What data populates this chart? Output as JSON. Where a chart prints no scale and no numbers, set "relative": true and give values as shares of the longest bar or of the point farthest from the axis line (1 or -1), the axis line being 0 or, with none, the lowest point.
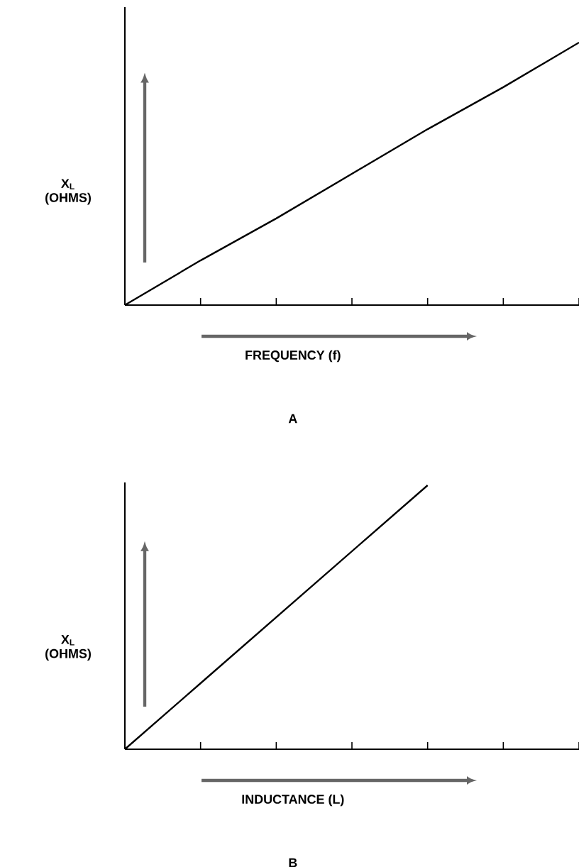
{
  "chart_data": [
    {
      "type": "line",
      "title": "A",
      "xlabel": "FREQUENCY (f)",
      "ylabel": "X$_{L}$ (OHMS)",
      "relative": true,
      "tick_labels": false,
      "categories": [
        null,
        null,
        null,
        null,
        null,
        null,
        null
      ],
      "series": [
        {
          "color": "#000000",
          "values": [
            0,
            0.17,
            0.33,
            0.5,
            0.67,
            0.83,
            1
          ]
        }
      ]
    },
    {
      "type": "line",
      "title": "B",
      "xlabel": "INDUCTANCE (L)",
      "ylabel": "X$_{L}$ (OHMS)",
      "relative": true,
      "tick_labels": false,
      "categories": [
        null,
        null,
        null,
        null,
        null,
        null,
        null
      ],
      "series": [
        {
          "color": "#000000",
          "values": [
            0,
            0.25,
            0.5,
            0.75,
            1,
            null,
            null
          ]
        }
      ]
    }
  ]
}
